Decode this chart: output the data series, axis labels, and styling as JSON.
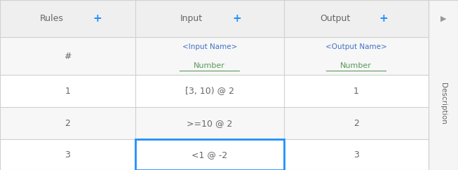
{
  "fig_width": 6.53,
  "fig_height": 2.43,
  "dpi": 100,
  "bg_color": "#ffffff",
  "header_bg": "#efefef",
  "row_bg_even": "#ffffff",
  "row_bg_odd": "#f7f7f7",
  "border_color": "#d0d0d0",
  "highlight_border": "#1e90ff",
  "text_color_dark": "#666666",
  "text_color_blue": "#4472c4",
  "text_color_green": "#5a9a5a",
  "plus_color": "#1e90ff",
  "arrow_color": "#999999",
  "desc_bg": "#f5f5f5",
  "col_splits": [
    0.0,
    0.295,
    0.62,
    0.935,
    1.0
  ],
  "row_tops": [
    1.0,
    0.78,
    0.56,
    0.37,
    0.18
  ],
  "row_bottoms": [
    0.78,
    0.56,
    0.37,
    0.18,
    0.0
  ],
  "header_row": {
    "col0": "Rules",
    "col1": "Input",
    "col2": "Output"
  },
  "subheader_row": {
    "col0": "#",
    "col1_line1": "<Input Name>",
    "col1_line2": "Number",
    "col2_line1": "<Output Name>",
    "col2_line2": "Number"
  },
  "data_rows": [
    {
      "col0": "1",
      "col1": "[3, 10) @ 2",
      "col2": "1",
      "highlight": false
    },
    {
      "col0": "2",
      "col1": ">=10 @ 2",
      "col2": "2",
      "highlight": false
    },
    {
      "col0": "3",
      "col1": "<1 @ -2",
      "col2": "3",
      "highlight": true
    }
  ],
  "description_text": "Description"
}
